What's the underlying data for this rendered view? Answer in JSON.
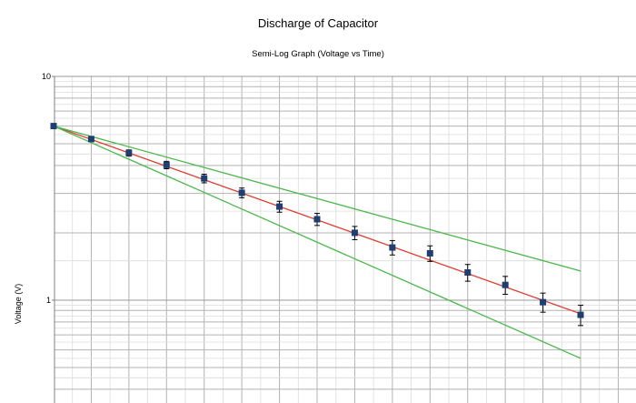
{
  "chart_data": {
    "type": "scatter",
    "title": "Discharge of Capacitor",
    "subtitle": "Semi-Log Graph (Voltage vs Time)",
    "xlabel": "",
    "ylabel": "Voltage (V)",
    "yscale": "log",
    "ylim": [
      0.45,
      10
    ],
    "y_ticks": [
      {
        "value": 10,
        "label": "10"
      },
      {
        "value": 1,
        "label": "1"
      }
    ],
    "grid": true,
    "colors": {
      "points": "#1f3f73",
      "fit_line": "#e03b2f",
      "bound_lines": "#4cb84c",
      "grid_major": "#b3b3b3",
      "grid_minor": "#dcdcdc",
      "error_bars": "#000000"
    },
    "series": [
      {
        "kind": "points_with_error_bars",
        "x": [
          0,
          1,
          2,
          3,
          4,
          5,
          6,
          7,
          8,
          9,
          10,
          11,
          12,
          13,
          14
        ],
        "values": [
          6.0,
          5.25,
          4.55,
          4.02,
          3.5,
          3.02,
          2.62,
          2.3,
          2.0,
          1.72,
          1.62,
          1.33,
          1.17,
          0.98,
          0.86
        ],
        "error": [
          0.1,
          0.1,
          0.1,
          0.1,
          0.1,
          0.1,
          0.1,
          0.1,
          0.1,
          0.1,
          0.1,
          0.1,
          0.1,
          0.1,
          0.1
        ]
      },
      {
        "kind": "fit_line",
        "x": [
          0,
          14
        ],
        "values": [
          6.0,
          0.87
        ]
      },
      {
        "kind": "upper_bound_line",
        "x": [
          0,
          14
        ],
        "values": [
          6.0,
          1.35
        ]
      },
      {
        "kind": "lower_bound_line",
        "x": [
          0,
          14
        ],
        "values": [
          6.0,
          0.55
        ]
      }
    ]
  }
}
